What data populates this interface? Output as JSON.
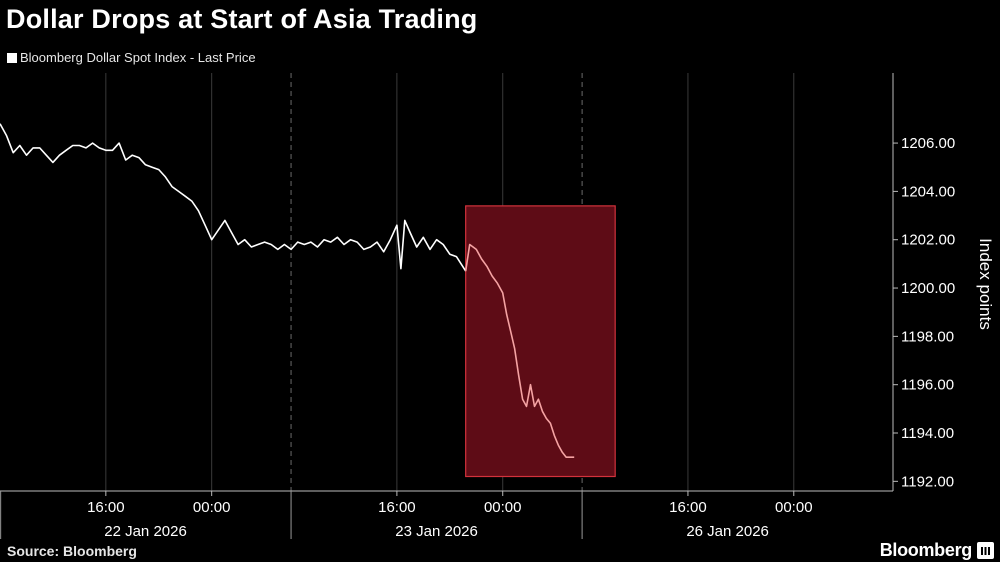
{
  "title": "Dollar Drops at Start of Asia Trading",
  "legend_label": "Bloomberg Dollar Spot Index - Last Price",
  "source": "Source: Bloomberg",
  "brand": "Bloomberg",
  "colors": {
    "background": "#000000",
    "line": "#ffffff",
    "highlight_line": "#f5a3a3",
    "highlight_fill": "#5e0c16",
    "highlight_border": "#d2323c",
    "grid": "#3a3a3a"
  },
  "chart_data": {
    "type": "line",
    "title": "Dollar Drops at Start of Asia Trading",
    "ylabel": "Index points",
    "ylim": [
      1191.6,
      1208.9
    ],
    "yticks": [
      1192,
      1194,
      1196,
      1198,
      1200,
      1202,
      1204,
      1206
    ],
    "ytick_labels": [
      "1192.00",
      "1194.00",
      "1196.00",
      "1198.00",
      "1200.00",
      "1202.00",
      "1204.00",
      "1206.00"
    ],
    "xlim": [
      0,
      67.5
    ],
    "xticks": [
      {
        "x": 8,
        "label": "16:00"
      },
      {
        "x": 16,
        "label": "00:00"
      },
      {
        "x": 30,
        "label": "16:00"
      },
      {
        "x": 38,
        "label": "00:00"
      },
      {
        "x": 52,
        "label": "16:00"
      },
      {
        "x": 60,
        "label": "00:00"
      }
    ],
    "date_labels": [
      {
        "x": 11,
        "label": "22 Jan 2026"
      },
      {
        "x": 33,
        "label": "23 Jan 2026"
      },
      {
        "x": 55,
        "label": "26 Jan 2026"
      }
    ],
    "date_dividers": [
      22,
      44
    ],
    "grid": true,
    "series": [
      {
        "name": "Bloomberg Dollar Spot Index - Last Price",
        "x": [
          0,
          0.5,
          1,
          1.5,
          2,
          2.5,
          3,
          3.5,
          4,
          4.5,
          5,
          5.5,
          6,
          6.5,
          7,
          7.5,
          8,
          8.5,
          9,
          9.5,
          10,
          10.5,
          11,
          11.5,
          12,
          12.5,
          13,
          13.5,
          14,
          14.5,
          15,
          15.5,
          16,
          16.5,
          17,
          17.5,
          18,
          18.5,
          19,
          19.5,
          20,
          20.5,
          21,
          21.5,
          22,
          22.5,
          23,
          23.5,
          24,
          24.5,
          25,
          25.5,
          26,
          26.5,
          27,
          27.5,
          28,
          28.5,
          29,
          29.5,
          30,
          30.3,
          30.6,
          31,
          31.5,
          32,
          32.5,
          33,
          33.5,
          34,
          34.5,
          35.2
        ],
        "values": [
          1206.8,
          1206.3,
          1205.6,
          1205.9,
          1205.5,
          1205.8,
          1205.8,
          1205.5,
          1205.2,
          1205.5,
          1205.7,
          1205.9,
          1205.9,
          1205.8,
          1206.0,
          1205.8,
          1205.7,
          1205.7,
          1206.0,
          1205.3,
          1205.5,
          1205.4,
          1205.1,
          1205.0,
          1204.9,
          1204.6,
          1204.2,
          1204.0,
          1203.8,
          1203.6,
          1203.2,
          1202.6,
          1202.0,
          1202.4,
          1202.8,
          1202.3,
          1201.8,
          1202.0,
          1201.7,
          1201.8,
          1201.9,
          1201.8,
          1201.6,
          1201.8,
          1201.6,
          1201.9,
          1201.8,
          1201.9,
          1201.7,
          1202.0,
          1201.9,
          1202.1,
          1201.8,
          1202.0,
          1201.9,
          1201.6,
          1201.7,
          1201.9,
          1201.5,
          1202.0,
          1202.6,
          1200.8,
          1202.8,
          1202.3,
          1201.7,
          1202.1,
          1201.6,
          1202.0,
          1201.8,
          1201.4,
          1201.3,
          1200.7
        ]
      },
      {
        "name": "",
        "highlight": true,
        "x": [
          35.2,
          35.5,
          36,
          36.4,
          36.8,
          37.2,
          37.6,
          38,
          38.3,
          38.6,
          38.9,
          39.2,
          39.5,
          39.8,
          40.1,
          40.4,
          40.7,
          41,
          41.3,
          41.6,
          41.9,
          42.2,
          42.5,
          42.8,
          43.1,
          43.4
        ],
        "values": [
          1200.7,
          1201.8,
          1201.6,
          1201.2,
          1200.9,
          1200.5,
          1200.2,
          1199.8,
          1198.9,
          1198.2,
          1197.5,
          1196.4,
          1195.4,
          1195.1,
          1196.0,
          1195.1,
          1195.4,
          1194.9,
          1194.6,
          1194.4,
          1193.9,
          1193.5,
          1193.2,
          1193.0,
          1193.0,
          1193.0
        ]
      }
    ],
    "highlight_region": {
      "x": [
        35.2,
        46.5
      ],
      "y": [
        1192.2,
        1203.4
      ]
    }
  }
}
